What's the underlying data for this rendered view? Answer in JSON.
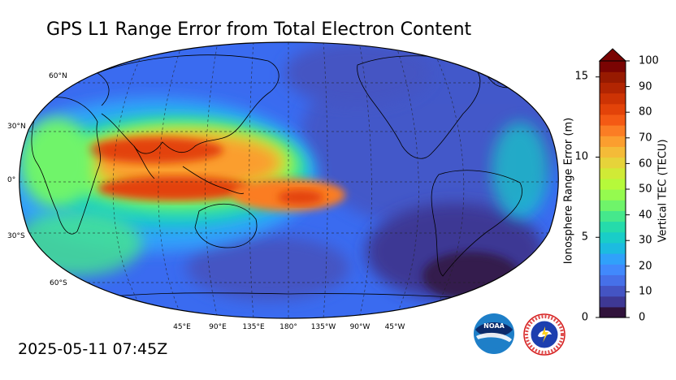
{
  "title": "GPS L1 Range Error from Total Electron Content",
  "timestamp": "2025-05-11 07:45Z",
  "map": {
    "lat_labels": [
      "60°N",
      "30°N",
      "0°",
      "30°S",
      "60°S"
    ],
    "lon_labels": [
      "45°E",
      "90°E",
      "135°E",
      "180°",
      "135°W",
      "90°W",
      "45°W"
    ]
  },
  "colorbar": {
    "left_axis_title": "Ionosphere Range Error (m)",
    "right_axis_title": "Vertical TEC (TECU)",
    "left_ticks": [
      "15",
      "10",
      "5",
      "0"
    ],
    "right_ticks": [
      "100",
      "90",
      "80",
      "70",
      "60",
      "50",
      "40",
      "30",
      "20",
      "10",
      "0"
    ],
    "colors": [
      "#30123b",
      "#3e3894",
      "#4454c3",
      "#4670e8",
      "#4189fc",
      "#30a1fa",
      "#1cbbe0",
      "#19cdc8",
      "#25dbab",
      "#45e88c",
      "#6ff46a",
      "#95fa4f",
      "#b6f93a",
      "#d0ea36",
      "#e6d33a",
      "#f4bb38",
      "#fb9e2f",
      "#fb7d24",
      "#f45a14",
      "#e34309",
      "#cd3304",
      "#b22502",
      "#971a01",
      "#7a0403"
    ]
  },
  "logos": {
    "noaa": "NOAA",
    "nws_ring": "NATIONAL WEATHER SERVICE"
  }
}
